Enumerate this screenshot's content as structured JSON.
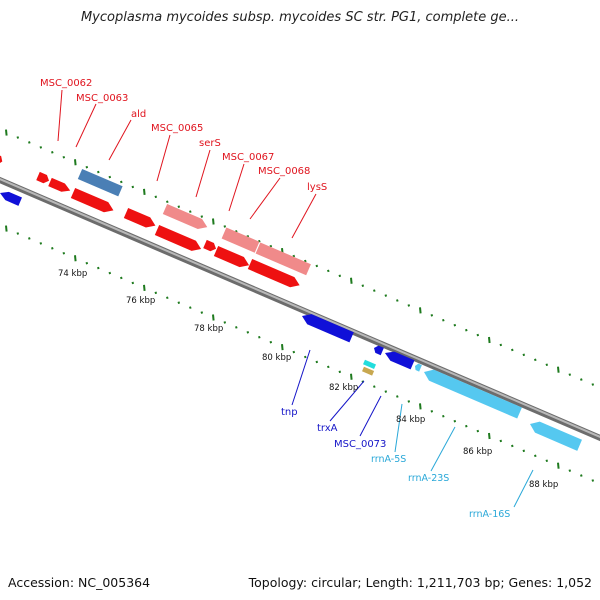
{
  "title": "Mycoplasma mycoides subsp. mycoides SC str. PG1, complete ge...",
  "footer": {
    "accession": "Accession: NC_005364",
    "summary": "Topology: circular; Length: 1,211,703 bp; Genes: 1,052"
  },
  "colors": {
    "forward_gene": "#ee1111",
    "forward_gene_light": "#f08a8a",
    "reverse_gene": "#1010d8",
    "rrna": "#55c8f0",
    "tick": "#1e7a1e",
    "backbone": "#8a8a8a"
  },
  "scale_labels": [
    {
      "text": "74 kbp"
    },
    {
      "text": "76 kbp"
    },
    {
      "text": "78 kbp"
    },
    {
      "text": "80 kbp"
    },
    {
      "text": "82 kbp"
    },
    {
      "text": "84 kbp"
    },
    {
      "text": "86 kbp"
    },
    {
      "text": "88 kbp"
    }
  ],
  "gene_labels": [
    {
      "text": "MSC_0062",
      "color": "red"
    },
    {
      "text": "MSC_0063",
      "color": "red"
    },
    {
      "text": "ald",
      "color": "red"
    },
    {
      "text": "MSC_0065",
      "color": "red"
    },
    {
      "text": "serS",
      "color": "red"
    },
    {
      "text": "MSC_0067",
      "color": "red"
    },
    {
      "text": "MSC_0068",
      "color": "red"
    },
    {
      "text": "lysS",
      "color": "red"
    },
    {
      "text": "tnp",
      "color": "blue"
    },
    {
      "text": "trxA",
      "color": "blue"
    },
    {
      "text": "MSC_0073",
      "color": "blue"
    },
    {
      "text": "rrnA-5S",
      "color": "cyan"
    },
    {
      "text": "rrnA-23S",
      "color": "cyan"
    },
    {
      "text": "rrnA-16S",
      "color": "cyan"
    }
  ]
}
